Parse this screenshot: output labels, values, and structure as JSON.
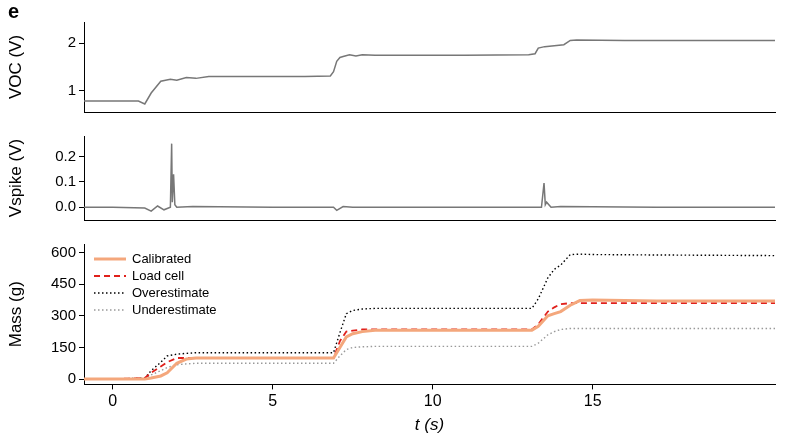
{
  "panel_label": "e",
  "chart_data": [
    {
      "type": "line",
      "y_label": "VOC (V)",
      "xlim": [
        -0.9,
        20.7
      ],
      "ylim": [
        0.55,
        2.45
      ],
      "yticks": [
        1,
        2
      ],
      "grid": false,
      "tick_labels": "y",
      "x": [
        -0.9,
        0,
        0.8,
        1.0,
        1.2,
        1.5,
        1.8,
        2.0,
        2.3,
        2.6,
        3.0,
        4,
        5,
        6,
        6.8,
        6.9,
        7.0,
        7.1,
        7.2,
        7.4,
        7.6,
        7.8,
        8.2,
        9,
        11,
        13.0,
        13.2,
        13.3,
        13.5,
        13.8,
        14.1,
        14.3,
        14.5,
        16,
        18,
        20.7
      ],
      "values": [
        0.78,
        0.78,
        0.78,
        0.72,
        0.95,
        1.2,
        1.24,
        1.22,
        1.28,
        1.26,
        1.3,
        1.3,
        1.3,
        1.3,
        1.31,
        1.4,
        1.62,
        1.7,
        1.72,
        1.76,
        1.73,
        1.76,
        1.75,
        1.75,
        1.75,
        1.76,
        1.78,
        1.9,
        1.93,
        1.95,
        1.97,
        2.06,
        2.07,
        2.06,
        2.06,
        2.06
      ],
      "color": "#777777",
      "line_style": "solid"
    },
    {
      "type": "line",
      "y_label": "Vspike (V)",
      "xlim": [
        -0.9,
        20.7
      ],
      "ylim": [
        -0.05,
        0.28
      ],
      "yticks": [
        {
          "value": 0,
          "label": "0.0"
        },
        0.1,
        0.2
      ],
      "grid": false,
      "tick_labels": "y",
      "x": [
        -0.9,
        0,
        1.0,
        1.2,
        1.4,
        1.6,
        1.8,
        1.84,
        1.86,
        1.9,
        1.94,
        2.0,
        2.5,
        5,
        6.9,
        7.0,
        7.2,
        7.5,
        10,
        13.4,
        13.48,
        13.52,
        13.56,
        13.7,
        14,
        17,
        20.7
      ],
      "values": [
        0,
        0,
        -0.003,
        -0.015,
        0.005,
        -0.01,
        0,
        0.25,
        0.02,
        0.13,
        0.01,
        0,
        0.003,
        0,
        0,
        -0.012,
        0.003,
        0,
        0,
        0,
        0.095,
        0.01,
        0.02,
        0,
        0.003,
        0,
        0
      ],
      "color": "#777777",
      "line_style": "solid"
    },
    {
      "type": "line",
      "y_label": "Mass (g)",
      "x_label": "t (s)",
      "xlim": [
        -0.9,
        20.7
      ],
      "xticks": [
        0,
        5,
        10,
        15
      ],
      "ylim": [
        -25,
        640
      ],
      "yticks": [
        0,
        150,
        300,
        450,
        600
      ],
      "grid": false,
      "legend": "upper left",
      "x": [
        -0.9,
        0,
        1,
        1.2,
        1.5,
        1.7,
        2,
        2.3,
        2.6,
        3,
        5,
        6.9,
        7.1,
        7.3,
        7.5,
        7.8,
        8.2,
        10,
        13.1,
        13.3,
        13.6,
        13.8,
        14,
        14.3,
        14.6,
        15,
        17,
        20.7
      ],
      "series": [
        {
          "name": "Calibrated",
          "color": "#f4a77c",
          "line_style": "solid",
          "values": [
            0,
            0,
            0,
            5,
            15,
            30,
            75,
            95,
            100,
            100,
            100,
            100,
            150,
            200,
            215,
            225,
            232,
            232,
            232,
            250,
            300,
            310,
            320,
            350,
            372,
            375,
            370,
            370
          ]
        },
        {
          "name": "Load cell",
          "color": "#e0201b",
          "line_style": "dashed",
          "values": [
            0,
            0,
            5,
            30,
            60,
            80,
            100,
            100,
            100,
            100,
            100,
            100,
            180,
            225,
            230,
            235,
            235,
            235,
            235,
            260,
            320,
            340,
            355,
            360,
            360,
            360,
            360,
            360
          ]
        },
        {
          "name": "Overestimate",
          "color": "#000000",
          "line_style": "dotted",
          "values": [
            0,
            0,
            5,
            40,
            80,
            110,
            118,
            122,
            125,
            125,
            125,
            125,
            220,
            310,
            325,
            332,
            335,
            335,
            335,
            380,
            480,
            520,
            540,
            590,
            592,
            590,
            588,
            585
          ]
        },
        {
          "name": "Underestimate",
          "color": "#999999",
          "line_style": "dotted",
          "values": [
            0,
            0,
            3,
            20,
            40,
            55,
            68,
            72,
            75,
            75,
            75,
            75,
            110,
            140,
            150,
            153,
            155,
            155,
            155,
            170,
            210,
            225,
            235,
            240,
            240,
            240,
            240,
            240
          ]
        }
      ]
    }
  ]
}
